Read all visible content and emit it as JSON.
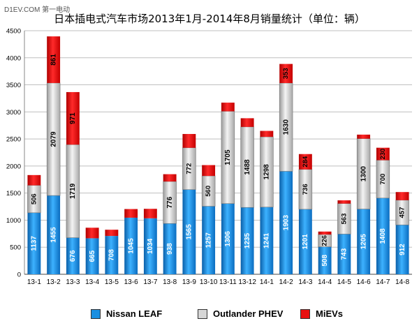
{
  "watermark": "D1EV.COM 第一电动",
  "chart_data": {
    "type": "bar",
    "stacked": true,
    "title": "日本插电式汽车市场2013年1月-2014年8月销量统计（单位：辆）",
    "xlabel": "",
    "ylabel": "",
    "ylim": [
      0,
      4500
    ],
    "yticks": [
      0,
      500,
      1000,
      1500,
      2000,
      2500,
      3000,
      3500,
      4000,
      4500
    ],
    "grid": true,
    "legend_position": "bottom",
    "categories": [
      "13-1",
      "13-2",
      "13-3",
      "13-4",
      "13-5",
      "13-6",
      "13-7",
      "13-8",
      "13-9",
      "13-10",
      "13-11",
      "13-12",
      "14-1",
      "14-2",
      "14-3",
      "14-4",
      "14-5",
      "14-6",
      "14-7",
      "14-8"
    ],
    "series": [
      {
        "name": "Nissan LEAF",
        "color": "#1b8fe0",
        "values": [
          1137,
          1455,
          676,
          665,
          708,
          1045,
          1034,
          938,
          1565,
          1257,
          1306,
          1235,
          1241,
          1903,
          1201,
          508,
          743,
          1205,
          1408,
          912
        ],
        "labels": [
          "1137",
          "1455",
          "676",
          "665",
          "708",
          "1045",
          "1034",
          "938",
          "1565",
          "1257",
          "1306",
          "1235",
          "1241",
          "1903",
          "1201",
          "508",
          "743",
          "1205",
          "1408",
          "912"
        ]
      },
      {
        "name": "Outlander PHEV",
        "color": "#d6d6d6",
        "values": [
          506,
          2079,
          1719,
          0,
          0,
          0,
          0,
          776,
          772,
          560,
          1705,
          1488,
          1298,
          1630,
          736,
          226,
          563,
          1300,
          700,
          457
        ],
        "labels": [
          "506",
          "2079",
          "1719",
          "",
          "",
          "",
          "",
          "776",
          "772",
          "560",
          "1705",
          "1488",
          "1298",
          "1630",
          "736",
          "226",
          "563",
          "1300",
          "700",
          "457"
        ]
      },
      {
        "name": "MiEVs",
        "color": "#e81010",
        "values": [
          190,
          861,
          971,
          195,
          115,
          160,
          175,
          135,
          255,
          200,
          160,
          160,
          110,
          353,
          284,
          55,
          60,
          75,
          230,
          150
        ],
        "labels": [
          "",
          "861",
          "971",
          "",
          "",
          "",
          "",
          "",
          "",
          "",
          "",
          "",
          "",
          "353",
          "284",
          "",
          "",
          "",
          "230",
          ""
        ]
      }
    ]
  }
}
